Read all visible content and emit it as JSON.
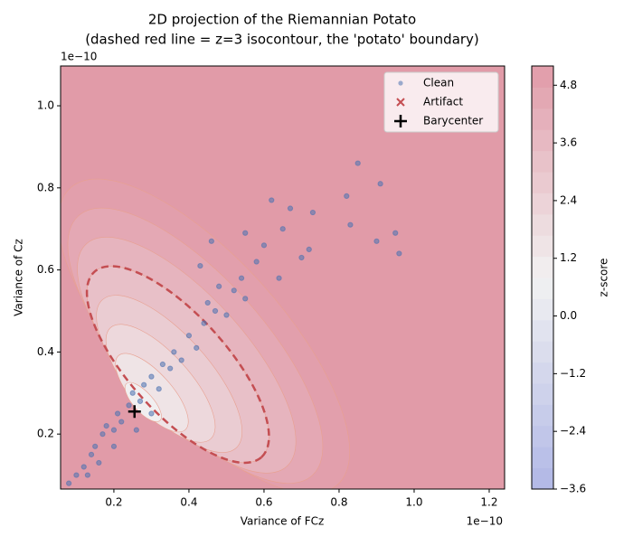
{
  "chart_data": {
    "type": "scatter",
    "title": "2D projection of the Riemannian Potato",
    "subtitle": "(dashed red line = z=3 isocontour, the 'potato' boundary)",
    "x_label": "Variance of FCz",
    "y_label": "Variance of Cz",
    "x_offset_label": "1e−10",
    "y_offset_label": "1e−10",
    "xlim": [
      0.058,
      1.241
    ],
    "ylim": [
      0.066,
      1.097
    ],
    "xticks": [
      0.2,
      0.4,
      0.6,
      0.8,
      {
        "value": 1.0,
        "label": "1.0"
      },
      1.2
    ],
    "yticks": [
      0.2,
      0.4,
      0.6,
      0.8,
      {
        "value": 1.0,
        "label": "1.0"
      }
    ],
    "legend": "upper right",
    "series": [
      {
        "name": "Clean",
        "color": "#4c72b0",
        "marker": "o",
        "x": [
          0.1,
          0.12,
          0.14,
          0.15,
          0.17,
          0.18,
          0.2,
          0.21,
          0.22,
          0.24,
          0.25,
          0.27,
          0.28,
          0.3,
          0.32,
          0.33,
          0.35,
          0.36,
          0.38,
          0.4,
          0.42,
          0.44,
          0.45,
          0.47,
          0.48,
          0.5,
          0.52,
          0.54,
          0.55,
          0.58,
          0.6,
          0.62,
          0.64,
          0.65,
          0.67,
          0.7,
          0.72,
          0.73,
          0.85,
          0.82,
          0.91,
          0.9,
          0.95,
          0.96,
          0.83,
          0.46,
          0.55,
          0.43,
          0.08,
          0.16,
          0.2,
          0.13,
          0.26,
          0.3
        ],
        "y": [
          0.1,
          0.12,
          0.15,
          0.17,
          0.2,
          0.22,
          0.21,
          0.25,
          0.23,
          0.27,
          0.3,
          0.28,
          0.32,
          0.34,
          0.31,
          0.37,
          0.36,
          0.4,
          0.38,
          0.44,
          0.41,
          0.47,
          0.52,
          0.5,
          0.56,
          0.49,
          0.55,
          0.58,
          0.53,
          0.62,
          0.66,
          0.77,
          0.58,
          0.7,
          0.75,
          0.63,
          0.65,
          0.74,
          0.86,
          0.78,
          0.81,
          0.67,
          0.69,
          0.64,
          0.71,
          0.67,
          0.69,
          0.61,
          0.08,
          0.13,
          0.17,
          0.1,
          0.21,
          0.25
        ]
      },
      {
        "name": "Artifact",
        "color": "#c44e52",
        "marker": "x",
        "x": [],
        "y": []
      },
      {
        "name": "Barycenter",
        "color": "#000000",
        "marker": "+",
        "x": [
          0.255
        ],
        "y": [
          0.255
        ]
      }
    ],
    "contour_levels": [
      0.6,
      1.2,
      1.8,
      2.4,
      3.0,
      3.6,
      4.2,
      4.8
    ],
    "boundary_z": 3,
    "boundary_color": "#c44e52",
    "colorbar_label": "z-score",
    "clim": [
      -3.6,
      5.2
    ],
    "colorbar_ticks": [
      {
        "value": -3.6,
        "label": "−3.6"
      },
      {
        "value": -2.4,
        "label": "−2.4"
      },
      {
        "value": -1.2,
        "label": "−1.2"
      },
      {
        "value": 0,
        "label": "0.0"
      },
      1.2,
      2.4,
      3.6,
      4.8
    ]
  }
}
